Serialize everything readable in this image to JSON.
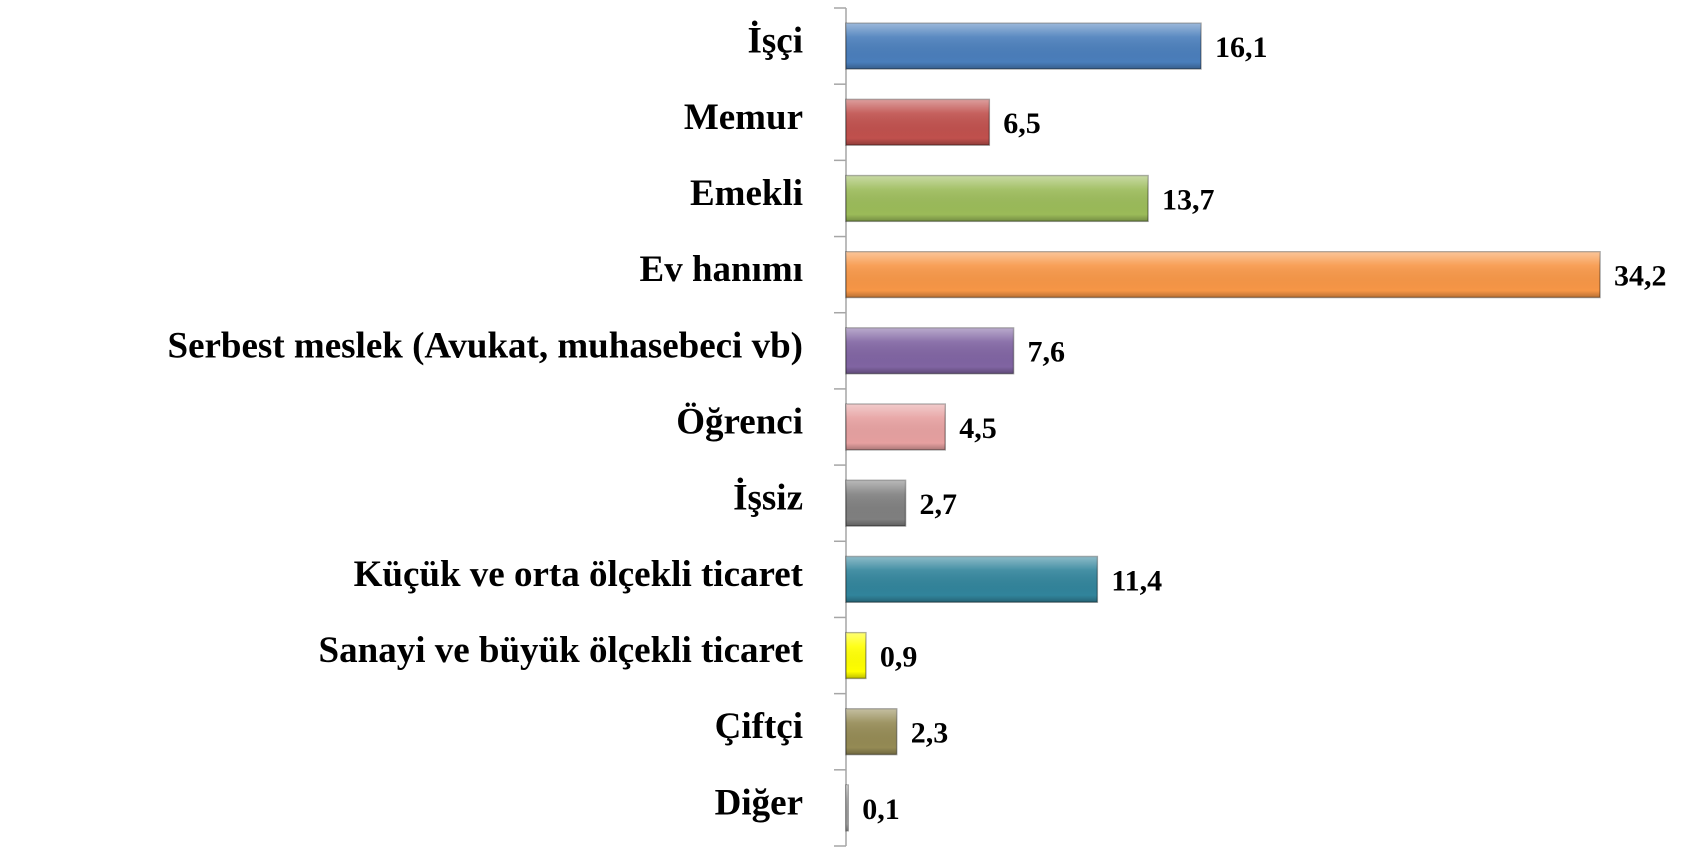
{
  "chart_data": {
    "type": "bar",
    "orientation": "horizontal",
    "categories": [
      "İşçi",
      "Memur",
      "Emekli",
      "Ev hanımı",
      "Serbest meslek (Avukat, muhasebeci vb)",
      "Öğrenci",
      "İşsiz",
      "Küçük ve orta ölçekli ticaret",
      "Sanayi ve büyük ölçekli ticaret",
      "Çiftçi",
      "Diğer"
    ],
    "values": [
      16.1,
      6.5,
      13.7,
      34.2,
      7.6,
      4.5,
      2.7,
      11.4,
      0.9,
      2.3,
      0.1
    ],
    "value_labels": [
      "16,1",
      "6,5",
      "13,7",
      "34,2",
      "7,6",
      "4,5",
      "2,7",
      "11,4",
      "0,9",
      "2,3",
      "0,1"
    ],
    "colors": [
      "#4a7ebb",
      "#c0504d",
      "#9bbb59",
      "#f79646",
      "#8064a2",
      "#e6a0a0",
      "#7f7f7f",
      "#31849b",
      "#ffff00",
      "#948a54",
      "#bfbfbf"
    ]
  }
}
